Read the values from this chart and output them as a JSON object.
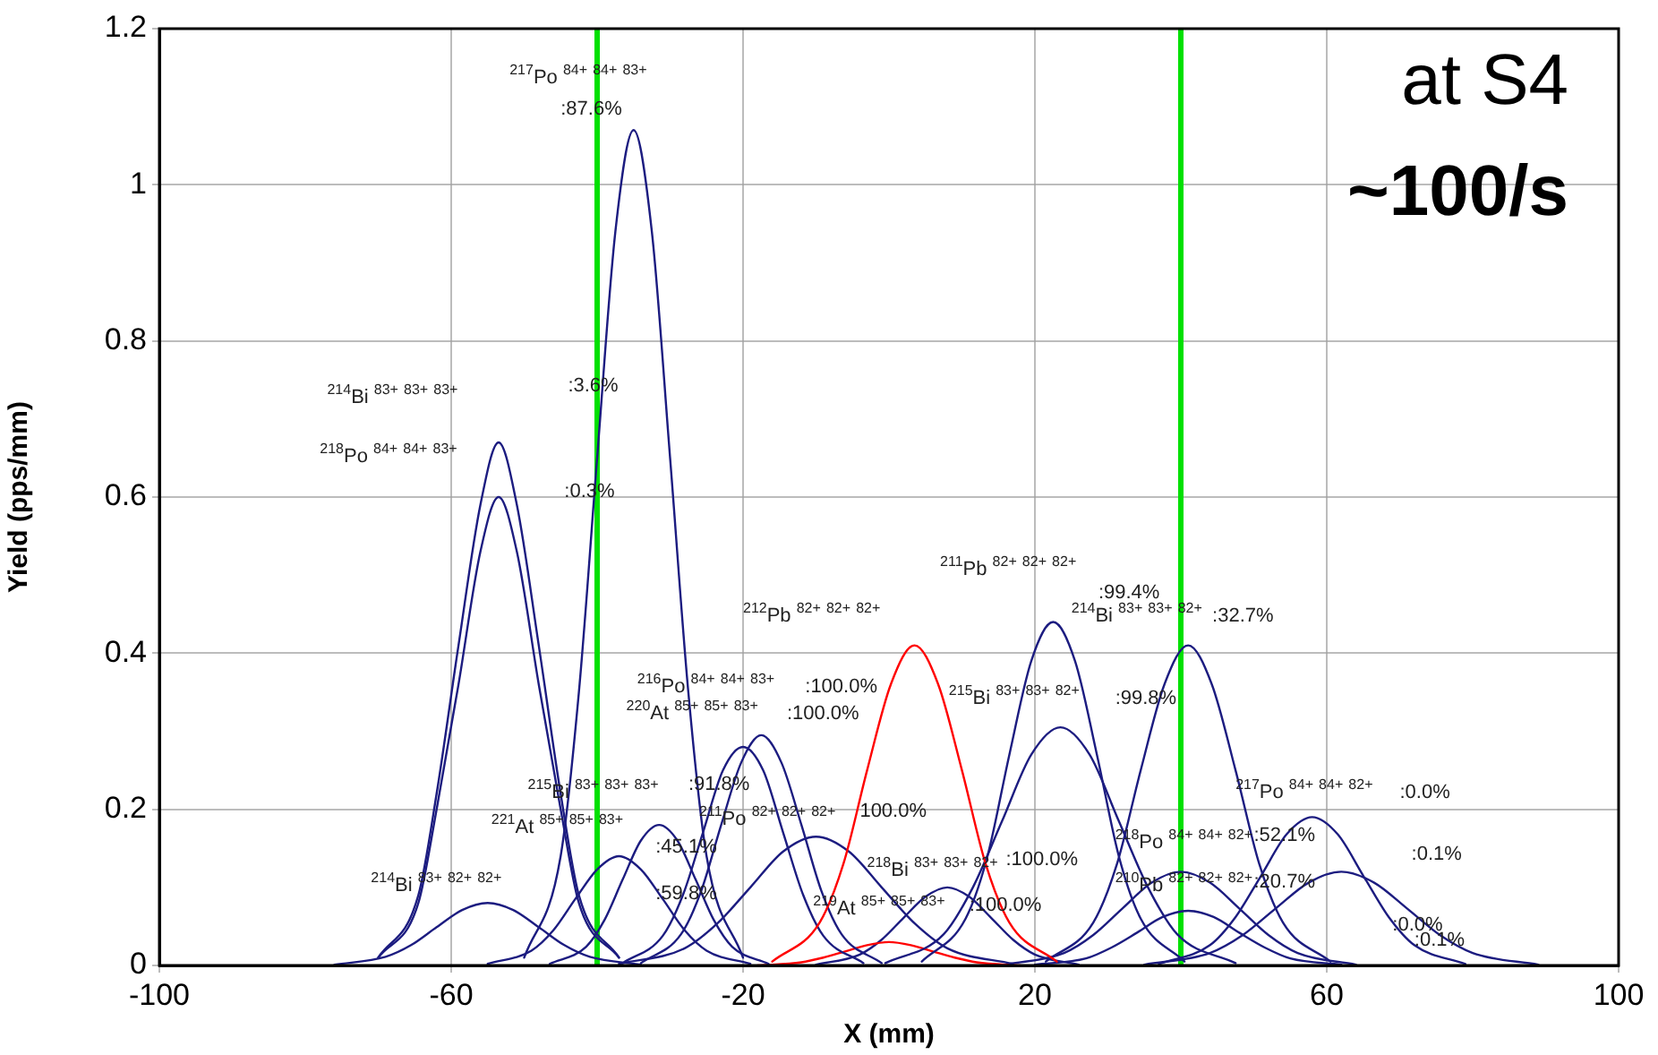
{
  "chart_data": {
    "type": "line",
    "xlabel": "X (mm)",
    "ylabel": "Yield (pps/mm)",
    "xlim": [
      -100,
      100
    ],
    "ylim": [
      0,
      1.2
    ],
    "xticks": [
      -100,
      -60,
      -20,
      20,
      60,
      100
    ],
    "yticks": [
      0,
      0.2,
      0.4,
      0.6,
      0.8,
      1,
      1.2
    ],
    "grid": true,
    "legend": false,
    "marker": "none",
    "series": [
      {
        "color": "#1c1c80",
        "x": [
          -50,
          -45,
          -42.5,
          -40,
          -37.5,
          -35,
          -32.5,
          -30,
          -27.5,
          -25,
          -20
        ],
        "values": [
          0.01,
          0.14,
          0.35,
          0.65,
          0.94,
          1.07,
          0.94,
          0.65,
          0.35,
          0.14,
          0.01
        ]
      },
      {
        "color": "#1c1c80",
        "x": [
          -70,
          -64.5,
          -62,
          -59,
          -56,
          -53.5,
          -51,
          -48,
          -45,
          -42.5,
          -37
        ],
        "values": [
          0.01,
          0.09,
          0.22,
          0.41,
          0.59,
          0.67,
          0.59,
          0.41,
          0.22,
          0.09,
          0.01
        ]
      },
      {
        "color": "#1c1c80",
        "x": [
          -70,
          -64.5,
          -62,
          -59,
          -56,
          -53.5,
          -51,
          -48,
          -45,
          -42.5,
          -37
        ],
        "values": [
          0.01,
          0.08,
          0.2,
          0.36,
          0.53,
          0.6,
          0.53,
          0.36,
          0.2,
          0.08,
          0.01
        ]
      },
      {
        "color": "#ff0000",
        "x": [
          -16,
          -9.5,
          -6.25,
          -3,
          0.25,
          3.5,
          6.75,
          10,
          13.25,
          16.5,
          23
        ],
        "values": [
          0.005,
          0.055,
          0.13,
          0.25,
          0.36,
          0.41,
          0.36,
          0.25,
          0.13,
          0.055,
          0.005
        ]
      },
      {
        "color": "#1c1c80",
        "x": [
          4.5,
          10.5,
          13.5,
          16.5,
          19.5,
          22.5,
          25.5,
          28.5,
          31.5,
          34.5,
          40.5
        ],
        "values": [
          0.005,
          0.06,
          0.14,
          0.27,
          0.39,
          0.44,
          0.39,
          0.27,
          0.14,
          0.06,
          0.005
        ]
      },
      {
        "color": "#1c1c80",
        "x": [
          -0.5,
          7.5,
          11.5,
          15.5,
          19.5,
          23.5,
          27.5,
          31.5,
          35.5,
          39.5,
          47.5
        ],
        "values": [
          0.003,
          0.04,
          0.1,
          0.185,
          0.27,
          0.305,
          0.27,
          0.185,
          0.1,
          0.04,
          0.003
        ]
      },
      {
        "color": "#1c1c80",
        "x": [
          21.5,
          28,
          31.25,
          34.5,
          37.75,
          41,
          44.25,
          47.5,
          50.75,
          54,
          60.5
        ],
        "values": [
          0.005,
          0.055,
          0.13,
          0.25,
          0.36,
          0.41,
          0.36,
          0.25,
          0.13,
          0.055,
          0.005
        ]
      },
      {
        "color": "#1c1c80",
        "x": [
          -34,
          -28.5,
          -25.75,
          -23,
          -20.25,
          -17.5,
          -14.75,
          -12,
          -9.25,
          -6.5,
          -1
        ],
        "values": [
          0.003,
          0.04,
          0.095,
          0.18,
          0.26,
          0.295,
          0.26,
          0.18,
          0.095,
          0.04,
          0.003
        ]
      },
      {
        "color": "#1c1c80",
        "x": [
          -36.5,
          -31,
          -28.25,
          -25.5,
          -22.75,
          -20,
          -17.25,
          -14.5,
          -11.75,
          -9,
          -3.5
        ],
        "values": [
          0.003,
          0.038,
          0.09,
          0.17,
          0.25,
          0.28,
          0.25,
          0.17,
          0.09,
          0.038,
          0.003
        ]
      },
      {
        "color": "#1c1c80",
        "x": [
          37,
          44,
          47.5,
          51,
          54.5,
          58,
          61.5,
          65,
          68.5,
          72,
          79
        ],
        "values": [
          0.002,
          0.026,
          0.062,
          0.115,
          0.168,
          0.19,
          0.168,
          0.115,
          0.062,
          0.026,
          0.002
        ]
      },
      {
        "color": "#1c1c80",
        "x": [
          35,
          44,
          48.5,
          53,
          57.5,
          62,
          66.5,
          71,
          75.5,
          80,
          89
        ],
        "values": [
          0.001,
          0.016,
          0.039,
          0.073,
          0.106,
          0.12,
          0.106,
          0.073,
          0.039,
          0.016,
          0.001
        ]
      },
      {
        "color": "#1c1c80",
        "x": [
          -46.5,
          -41.5,
          -39,
          -36.5,
          -34,
          -31.5,
          -29,
          -26.5,
          -24,
          -21.5,
          -16.5
        ],
        "values": [
          0.002,
          0.024,
          0.058,
          0.11,
          0.16,
          0.18,
          0.16,
          0.11,
          0.058,
          0.024,
          0.002
        ]
      },
      {
        "color": "#1c1c80",
        "x": [
          -55,
          -49,
          -46,
          -43,
          -40,
          -37,
          -34,
          -31,
          -28,
          -25,
          -19
        ],
        "values": [
          0.002,
          0.019,
          0.045,
          0.085,
          0.123,
          0.14,
          0.123,
          0.085,
          0.045,
          0.019,
          0.002
        ]
      },
      {
        "color": "#1c1c80",
        "x": [
          -37,
          -28,
          -23.5,
          -19,
          -14.5,
          -10,
          -5.5,
          -1,
          3.5,
          8,
          17
        ],
        "values": [
          0.002,
          0.022,
          0.054,
          0.1,
          0.146,
          0.165,
          0.146,
          0.1,
          0.054,
          0.022,
          0.002
        ]
      },
      {
        "color": "#ff0000",
        "x": [
          -18,
          -12,
          -9,
          -6,
          -3,
          0,
          3,
          6,
          9,
          12,
          18
        ],
        "values": [
          0,
          0.004,
          0.01,
          0.018,
          0.026,
          0.03,
          0.026,
          0.018,
          0.01,
          0.004,
          0
        ]
      },
      {
        "color": "#1c1c80",
        "x": [
          16,
          24,
          28,
          32,
          36,
          40,
          44,
          48,
          52,
          56,
          64
        ],
        "values": [
          0.001,
          0.016,
          0.039,
          0.073,
          0.106,
          0.12,
          0.106,
          0.073,
          0.039,
          0.016,
          0.001
        ]
      },
      {
        "color": "#1c1c80",
        "x": [
          -76,
          -69,
          -65.5,
          -62,
          -58.5,
          -55,
          -51.5,
          -48,
          -44.5,
          -41,
          -34
        ],
        "values": [
          0.001,
          0.011,
          0.026,
          0.049,
          0.071,
          0.08,
          0.071,
          0.049,
          0.026,
          0.011,
          0.001
        ]
      },
      {
        "color": "#1c1c80",
        "x": [
          -10,
          -4,
          -1,
          2,
          5,
          8,
          11,
          14,
          17,
          20,
          26
        ],
        "values": [
          0.001,
          0.014,
          0.033,
          0.061,
          0.088,
          0.1,
          0.088,
          0.061,
          0.033,
          0.014,
          0.001
        ]
      },
      {
        "color": "#1c1c80",
        "x": [
          20,
          27,
          30.5,
          34,
          37.5,
          41,
          44.5,
          48,
          51.5,
          55,
          62
        ],
        "values": [
          0.001,
          0.009,
          0.023,
          0.042,
          0.062,
          0.07,
          0.062,
          0.042,
          0.023,
          0.009,
          0.001
        ]
      }
    ],
    "ref_lines": [
      {
        "axis": "x",
        "value": -40,
        "color": "#00e000"
      },
      {
        "axis": "x",
        "value": 40,
        "color": "#00e000"
      }
    ],
    "annotations": [
      "at S4",
      "~100/s",
      "$^{217}$Po $^{84+}$ $^{84+}$ $^{83+}$",
      ":87.6%",
      "$^{214}$Bi $^{83+}$ $^{83+}$ $^{83+}$",
      ":3.6%",
      "$^{218}$Po $^{84+}$ $^{84+}$ $^{83+}$",
      ":0.3%",
      "$^{212}$Pb $^{82+}$ $^{82+}$ $^{82+}$",
      "$^{211}$Pb $^{82+}$ $^{82+}$ $^{82+}$",
      ":99.4%",
      "$^{214}$Bi $^{83+}$ $^{83+}$ $^{82+}$",
      ":32.7%",
      "$^{215}$Bi $^{83+}$ $^{83+}$ $^{82+}$",
      ":99.8%",
      "$^{216}$Po $^{84+}$ $^{84+}$ $^{83+}$",
      ":100.0%",
      "$^{220}$At $^{85+}$ $^{85+}$ $^{83+}$",
      ":100.0%",
      "$^{215}$Bi $^{83+}$ $^{83+}$ $^{83+}$",
      ":91.8%",
      "$^{211}$Po $^{82+}$ $^{82+}$ $^{82+}$",
      "100.0%",
      "$^{221}$At $^{85+}$ $^{85+}$ $^{83+}$",
      ":45.1%",
      "$^{214}$Bi $^{83+}$ $^{82+}$ $^{82+}$",
      ":59.8%",
      "$^{218}$Bi $^{83+}$ $^{83+}$ $^{82+}$",
      ":100.0%",
      "$^{219}$At $^{85+}$ $^{85+}$ $^{83+}$",
      ":100.0%",
      "$^{217}$Po $^{84+}$ $^{84+}$ $^{82+}$",
      ":0.0%",
      ":0.1%",
      "$^{218}$Po $^{84+}$ $^{84+}$ $^{82+}$",
      ":52.1%",
      "$^{210}$Pb $^{82+}$ $^{82+}$ $^{82+}$",
      ":20.7%",
      ":0.0%",
      ":0.1%"
    ]
  }
}
